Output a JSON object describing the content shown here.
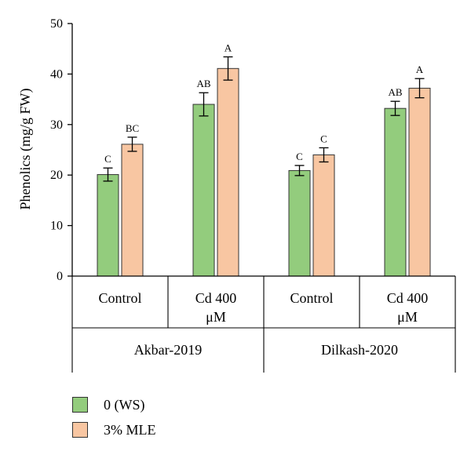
{
  "chart_data": {
    "type": "bar",
    "ylabel": "Phenolics (mg/g FW)",
    "ylim": [
      0,
      50
    ],
    "yticks": [
      0,
      10,
      20,
      30,
      40,
      50
    ],
    "groups": [
      {
        "name": "Akbar-2019",
        "categories": [
          "Control",
          "Cd 400 μM"
        ]
      },
      {
        "name": "Dilkash-2020",
        "categories": [
          "Control",
          "Cd 400 μM"
        ]
      }
    ],
    "categories": [
      "Control",
      "Cd 400 μM",
      "Control",
      "Cd 400 μM"
    ],
    "category_label_lines": [
      [
        "Control"
      ],
      [
        "Cd 400",
        "μM"
      ],
      [
        "Control"
      ],
      [
        "Cd 400",
        "μM"
      ]
    ],
    "series": [
      {
        "name": "0 (WS)",
        "color": "#93cc7d",
        "values": [
          20.1,
          34.0,
          20.9,
          33.2
        ],
        "errors": [
          1.3,
          2.3,
          1.0,
          1.4
        ],
        "letters": [
          "C",
          "AB",
          "C",
          "AB"
        ]
      },
      {
        "name": "3% MLE",
        "color": "#f8c6a2",
        "values": [
          26.1,
          41.1,
          24.0,
          37.2
        ],
        "errors": [
          1.4,
          2.3,
          1.4,
          1.9
        ],
        "letters": [
          "BC",
          "A",
          "C",
          "A"
        ]
      }
    ],
    "legend_position": "bottom-left",
    "grid": false
  }
}
